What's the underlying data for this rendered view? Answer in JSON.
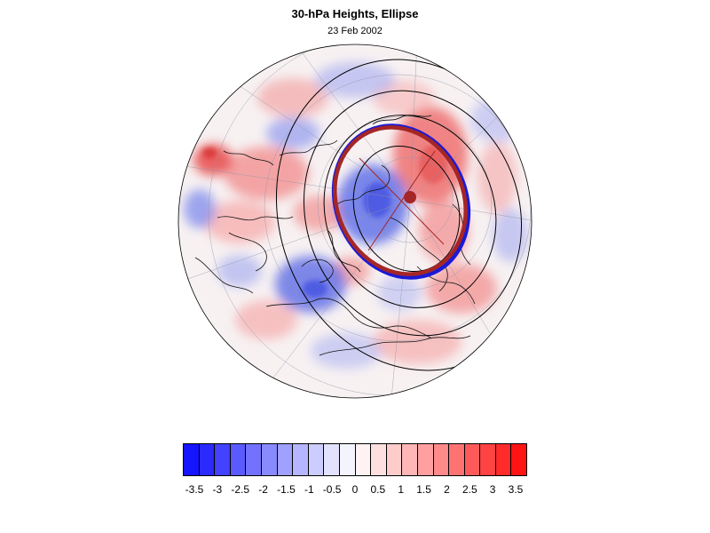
{
  "title": "30-hPa Heights, Ellipse",
  "subtitle": "23 Feb 2002",
  "colorbar": {
    "colors": [
      "#1414ff",
      "#2a2aff",
      "#4242ff",
      "#5a5aff",
      "#7272ff",
      "#8a8aff",
      "#a0a0ff",
      "#b6b6ff",
      "#ccccff",
      "#e2e2ff",
      "#f4f4ff",
      "#fff2f2",
      "#ffe0e0",
      "#ffcccc",
      "#ffb6b6",
      "#ffa0a0",
      "#ff8a8a",
      "#ff7272",
      "#ff5a5a",
      "#ff4242",
      "#ff2a2a",
      "#ff1414"
    ],
    "tick_labels": [
      "-3.5",
      "-3",
      "-2.5",
      "-2",
      "-1.5",
      "-1",
      "-0.5",
      "0",
      "0.5",
      "1",
      "1.5",
      "2",
      "2.5",
      "3",
      "3.5"
    ]
  },
  "map": {
    "projection": "polar stereographic (northern hemisphere)",
    "fill_colors": {
      "ocean_bg": "#f7f1f2",
      "positive": "#f07a7a",
      "negative": "#6a78ec",
      "contour": "#000000"
    },
    "ellipse_colors": {
      "fitted": "#a52626",
      "observed": "#1a1ad6"
    }
  }
}
